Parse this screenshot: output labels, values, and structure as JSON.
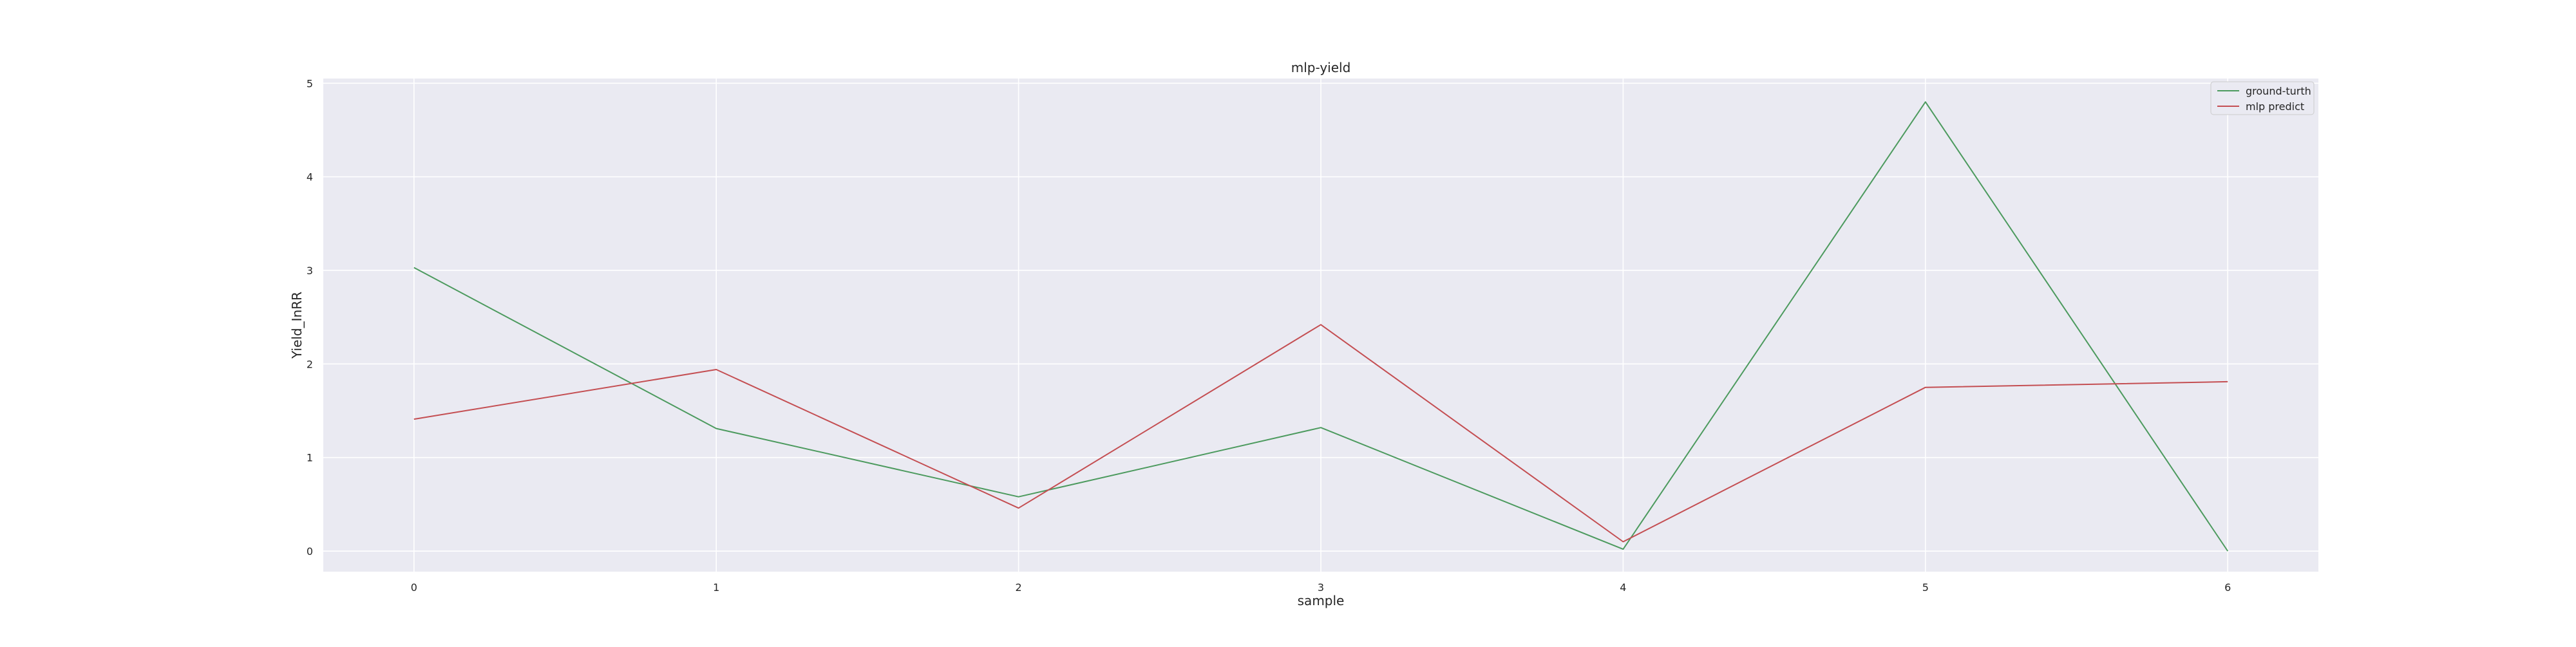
{
  "chart_data": {
    "type": "line",
    "title": "mlp-yield",
    "xlabel": "sample",
    "ylabel": "Yield_InRR",
    "x": [
      0,
      1,
      2,
      3,
      4,
      5,
      6
    ],
    "xlim": [
      -0.3,
      6.3
    ],
    "ylim": [
      -0.22,
      5.05
    ],
    "xticks": [
      "0",
      "1",
      "2",
      "3",
      "4",
      "5",
      "6"
    ],
    "yticks": [
      "0",
      "1",
      "2",
      "3",
      "4",
      "5"
    ],
    "grid": true,
    "legend_position": "top-right",
    "series": [
      {
        "name": "ground-turth",
        "color": "#4c9a5e",
        "values": [
          3.03,
          1.31,
          0.58,
          1.32,
          0.02,
          4.8,
          0.0
        ]
      },
      {
        "name": "mlp predict",
        "color": "#c44e52",
        "values": [
          1.41,
          1.94,
          0.46,
          2.42,
          0.1,
          1.75,
          1.81
        ]
      }
    ]
  }
}
